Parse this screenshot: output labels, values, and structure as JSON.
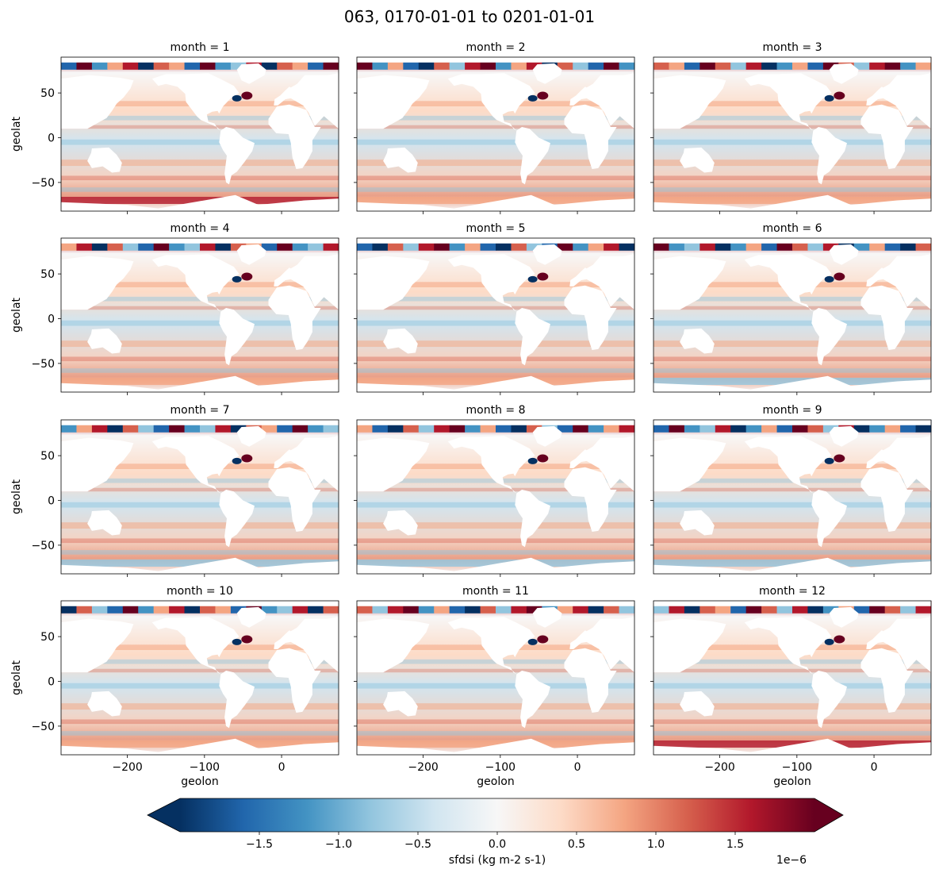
{
  "figure": {
    "title": "063, 0170-01-01 to 0201-01-01"
  },
  "chart_data": {
    "type": "heatmap",
    "variable": "sfdsi",
    "panel_titles": [
      "month = 1",
      "month = 2",
      "month = 3",
      "month = 4",
      "month = 5",
      "month = 6",
      "month = 7",
      "month = 8",
      "month = 9",
      "month = 10",
      "month = 11",
      "month = 12"
    ],
    "xlabel": "geolon",
    "ylabel": "geolat",
    "xlim": [
      -286,
      74
    ],
    "ylim": [
      -82,
      90
    ],
    "xticks": [
      -200,
      -100,
      0
    ],
    "xtick_labels": [
      "−200",
      "−100",
      "0"
    ],
    "yticks": [
      -50,
      0,
      50
    ],
    "ytick_labels": [
      "−50",
      "0",
      "50"
    ],
    "colorbar": {
      "label": "sfdsi (kg m-2 s-1)",
      "multiplier": "1e−6",
      "range": [
        -2.0,
        2.0
      ],
      "extend": "both",
      "colormap": "RdBu_r",
      "ticks": [
        -1.5,
        -1.0,
        -0.5,
        0.0,
        0.5,
        1.0,
        1.5
      ],
      "tick_labels": [
        "−1.5",
        "−1.0",
        "−0.5",
        "0.0",
        "0.5",
        "1.0",
        "1.5"
      ],
      "colors": [
        "#053061",
        "#2166ac",
        "#4393c3",
        "#92c5de",
        "#d1e5f0",
        "#f7f7f7",
        "#fddbc7",
        "#f4a582",
        "#d6604d",
        "#b2182b",
        "#67001f"
      ]
    }
  }
}
